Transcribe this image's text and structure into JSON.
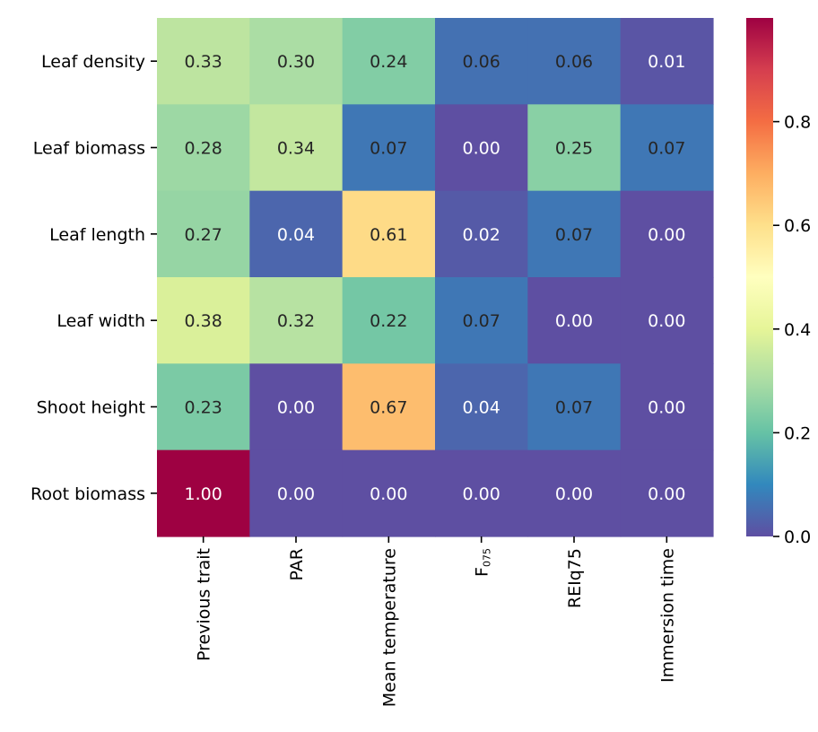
{
  "chart_data": {
    "type": "heatmap",
    "rows": [
      "Leaf density",
      "Leaf biomass",
      "Leaf length",
      "Leaf width",
      "Shoot height",
      "Root biomass"
    ],
    "columns": [
      {
        "label": "Previous trait"
      },
      {
        "label": "PAR"
      },
      {
        "label": "Mean temperature"
      },
      {
        "label": "F",
        "sub": "075"
      },
      {
        "label": "REIq75"
      },
      {
        "label": "Immersion time"
      }
    ],
    "values": [
      [
        0.33,
        0.3,
        0.24,
        0.06,
        0.06,
        0.01
      ],
      [
        0.28,
        0.34,
        0.07,
        0.0,
        0.25,
        0.07
      ],
      [
        0.27,
        0.04,
        0.61,
        0.02,
        0.07,
        0.0
      ],
      [
        0.38,
        0.32,
        0.22,
        0.07,
        0.0,
        0.0
      ],
      [
        0.23,
        0.0,
        0.67,
        0.04,
        0.07,
        0.0
      ],
      [
        1.0,
        0.0,
        0.0,
        0.0,
        0.0,
        0.0
      ]
    ],
    "value_labels": [
      [
        "0.33",
        "0.30",
        "0.24",
        "0.06",
        "0.06",
        "0.01"
      ],
      [
        "0.28",
        "0.34",
        "0.07",
        "0.00",
        "0.25",
        "0.07"
      ],
      [
        "0.27",
        "0.04",
        "0.61",
        "0.02",
        "0.07",
        "0.00"
      ],
      [
        "0.38",
        "0.32",
        "0.22",
        "0.07",
        "0.00",
        "0.00"
      ],
      [
        "0.23",
        "0.00",
        "0.67",
        "0.04",
        "0.07",
        "0.00"
      ],
      [
        "1.00",
        "0.00",
        "0.00",
        "0.00",
        "0.00",
        "0.00"
      ]
    ],
    "colormap": "Spectral_r",
    "colorbar": {
      "range": [
        0,
        1
      ],
      "ticks": [
        0.0,
        0.2,
        0.4,
        0.6,
        0.8
      ],
      "tick_labels": [
        "0.0",
        "0.2",
        "0.4",
        "0.6",
        "0.8"
      ]
    },
    "title": "",
    "xlabel": "",
    "ylabel": ""
  }
}
